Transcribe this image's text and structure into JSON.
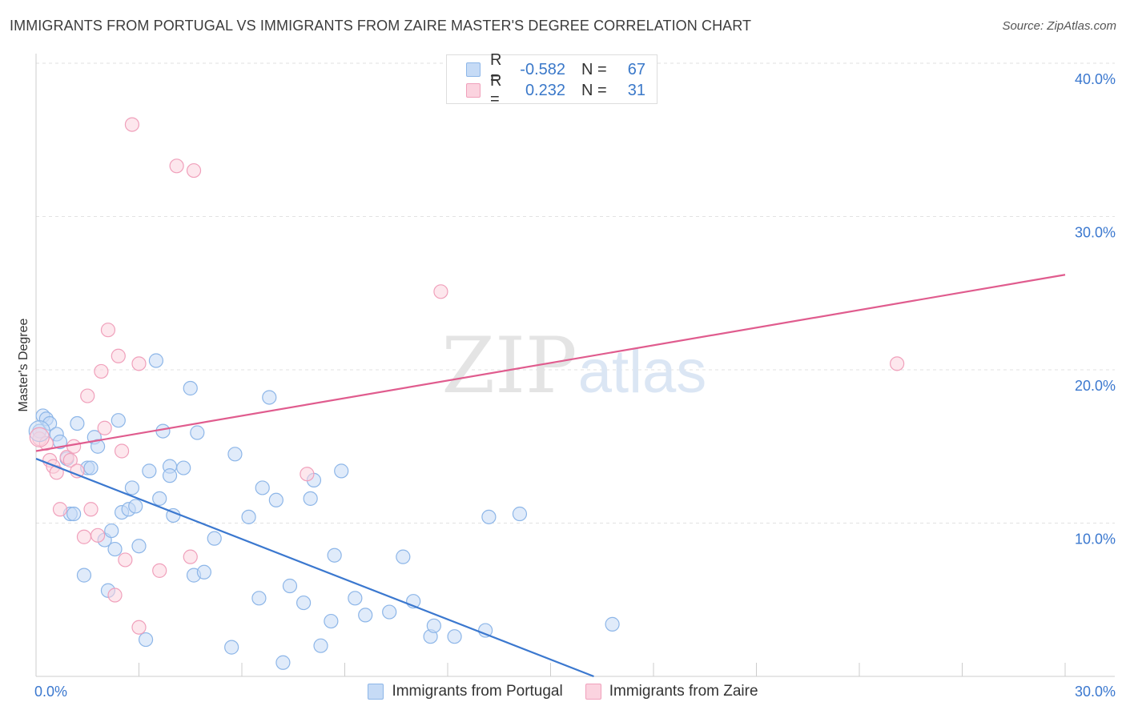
{
  "title": "IMMIGRANTS FROM PORTUGAL VS IMMIGRANTS FROM ZAIRE MASTER'S DEGREE CORRELATION CHART",
  "source": "Source: ZipAtlas.com",
  "watermark": {
    "zip": "ZIP",
    "atlas": "atlas"
  },
  "legend_top": [
    {
      "r_label": "R =",
      "r_value": "-0.582",
      "n_label": "N =",
      "n_value": "67",
      "color": "#8db6e8",
      "fill": "#c6dbf6"
    },
    {
      "r_label": "R =",
      "r_value": "0.232",
      "n_label": "N =",
      "n_value": "31",
      "color": "#f0a0bb",
      "fill": "#fbd3df"
    }
  ],
  "chart_data": {
    "type": "scatter",
    "title": "IMMIGRANTS FROM PORTUGAL VS IMMIGRANTS FROM ZAIRE MASTER'S DEGREE CORRELATION CHART",
    "xlabel": "",
    "ylabel": "Master's Degree",
    "xlim": [
      0,
      30
    ],
    "ylim": [
      0,
      40
    ],
    "x_tick_labels": [
      "0.0%",
      "30.0%"
    ],
    "y_ticks": [
      10,
      20,
      30,
      40
    ],
    "y_tick_labels": [
      "10.0%",
      "20.0%",
      "30.0%",
      "40.0%"
    ],
    "grid": true,
    "legend_position": "bottom",
    "series": [
      {
        "name": "Immigrants from Portugal",
        "color": "#3b78cf",
        "marker_fill": "#c6dbf6",
        "marker_stroke": "#8db6e8",
        "trend": {
          "x": [
            0,
            30
          ],
          "y": [
            14.2,
            -12.0
          ]
        },
        "points": [
          [
            0.1,
            16.0
          ],
          [
            0.2,
            17.0
          ],
          [
            0.3,
            16.8
          ],
          [
            0.4,
            16.5
          ],
          [
            0.6,
            15.8
          ],
          [
            0.7,
            15.3
          ],
          [
            0.9,
            14.2
          ],
          [
            1.0,
            10.6
          ],
          [
            1.1,
            10.6
          ],
          [
            1.2,
            16.5
          ],
          [
            1.4,
            6.6
          ],
          [
            1.5,
            13.6
          ],
          [
            1.6,
            13.6
          ],
          [
            1.7,
            15.6
          ],
          [
            1.8,
            15.0
          ],
          [
            2.0,
            8.9
          ],
          [
            2.1,
            5.6
          ],
          [
            2.2,
            9.5
          ],
          [
            2.3,
            8.3
          ],
          [
            2.4,
            16.7
          ],
          [
            2.5,
            10.7
          ],
          [
            2.7,
            10.9
          ],
          [
            2.8,
            12.3
          ],
          [
            2.9,
            11.1
          ],
          [
            3.0,
            8.5
          ],
          [
            3.2,
            2.4
          ],
          [
            3.3,
            13.4
          ],
          [
            3.5,
            20.6
          ],
          [
            3.6,
            11.6
          ],
          [
            3.7,
            16.0
          ],
          [
            3.9,
            13.7
          ],
          [
            3.9,
            13.1
          ],
          [
            4.0,
            10.5
          ],
          [
            4.3,
            13.6
          ],
          [
            4.5,
            18.8
          ],
          [
            4.6,
            6.6
          ],
          [
            4.7,
            15.9
          ],
          [
            4.9,
            6.8
          ],
          [
            5.2,
            9.0
          ],
          [
            5.7,
            1.9
          ],
          [
            5.8,
            14.5
          ],
          [
            6.2,
            10.4
          ],
          [
            6.5,
            5.1
          ],
          [
            6.6,
            12.3
          ],
          [
            6.8,
            18.2
          ],
          [
            7.0,
            11.5
          ],
          [
            7.2,
            0.9
          ],
          [
            7.4,
            5.9
          ],
          [
            7.8,
            4.8
          ],
          [
            8.0,
            11.6
          ],
          [
            8.1,
            12.8
          ],
          [
            8.3,
            2.0
          ],
          [
            8.6,
            3.6
          ],
          [
            8.7,
            7.9
          ],
          [
            8.9,
            13.4
          ],
          [
            9.3,
            5.1
          ],
          [
            9.6,
            4.0
          ],
          [
            10.3,
            4.2
          ],
          [
            10.7,
            7.8
          ],
          [
            11.0,
            4.9
          ],
          [
            11.5,
            2.6
          ],
          [
            11.6,
            3.3
          ],
          [
            12.2,
            2.6
          ],
          [
            13.1,
            3.0
          ],
          [
            13.2,
            10.4
          ],
          [
            14.1,
            10.6
          ],
          [
            16.8,
            3.4
          ]
        ]
      },
      {
        "name": "Immigrants from Zaire",
        "color": "#e05c8e",
        "marker_fill": "#fbd3df",
        "marker_stroke": "#f0a0bb",
        "trend": {
          "x": [
            0,
            30
          ],
          "y": [
            14.7,
            26.2
          ]
        },
        "points": [
          [
            0.1,
            15.5
          ],
          [
            0.3,
            15.2
          ],
          [
            0.4,
            14.1
          ],
          [
            0.5,
            13.7
          ],
          [
            0.6,
            13.3
          ],
          [
            0.7,
            10.9
          ],
          [
            0.9,
            14.3
          ],
          [
            1.0,
            14.1
          ],
          [
            1.1,
            15.0
          ],
          [
            1.2,
            13.4
          ],
          [
            1.4,
            9.1
          ],
          [
            1.5,
            18.3
          ],
          [
            1.6,
            10.9
          ],
          [
            1.8,
            9.2
          ],
          [
            1.9,
            19.9
          ],
          [
            2.0,
            16.2
          ],
          [
            2.1,
            22.6
          ],
          [
            2.3,
            5.3
          ],
          [
            2.4,
            20.9
          ],
          [
            2.5,
            14.7
          ],
          [
            2.6,
            7.6
          ],
          [
            2.8,
            36.0
          ],
          [
            3.0,
            20.4
          ],
          [
            3.0,
            3.2
          ],
          [
            3.6,
            6.9
          ],
          [
            4.1,
            33.3
          ],
          [
            4.5,
            7.8
          ],
          [
            4.6,
            33.0
          ],
          [
            7.9,
            13.2
          ],
          [
            11.8,
            25.1
          ],
          [
            25.1,
            20.4
          ]
        ]
      }
    ]
  }
}
